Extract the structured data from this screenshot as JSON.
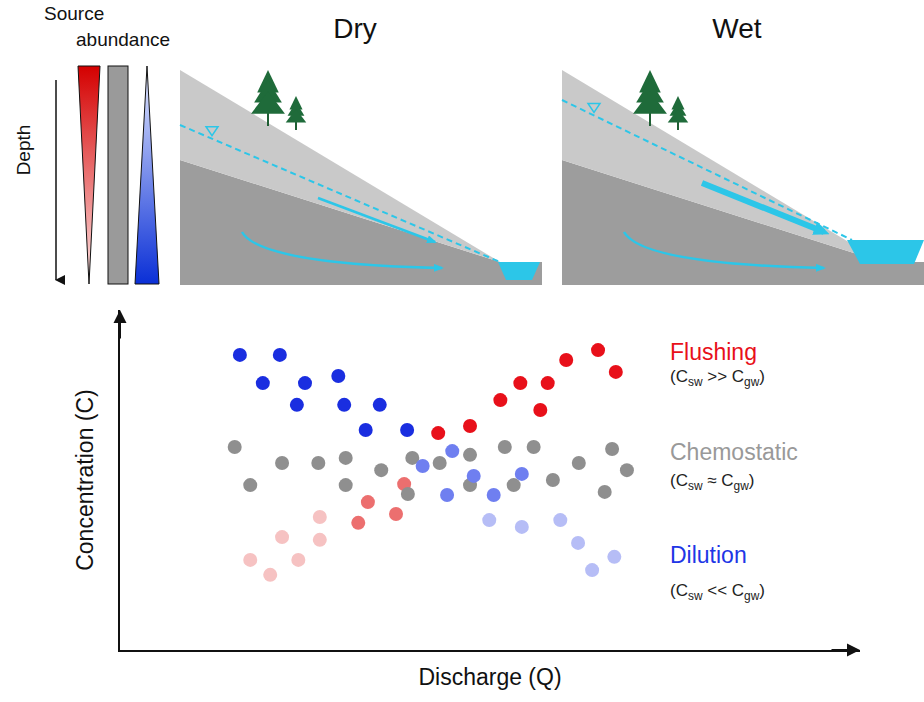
{
  "diagram": {
    "source_abundance": {
      "label": "Source abundance",
      "depth_label": "Depth"
    },
    "panels": [
      {
        "title": "Dry"
      },
      {
        "title": "Wet"
      }
    ]
  },
  "chart_data": {
    "type": "scatter",
    "x_label": "Discharge (Q)",
    "y_label": "Concentration (C)",
    "xlim": [
      0,
      100
    ],
    "ylim": [
      0,
      100
    ],
    "xticks": [],
    "yticks": [],
    "tick_labels": false,
    "grid": false,
    "series": [
      {
        "name": "Flushing",
        "color": "#e8101a",
        "marker": "circle",
        "condition": [
          "(C",
          "sw",
          " >> C",
          "gw",
          ")"
        ],
        "x": [
          17.6,
          20.3,
          24.1,
          21.9,
          27.0,
          27.0,
          32.2,
          33.5,
          37.3,
          38.4,
          43.0,
          47.3,
          51.4,
          54.1,
          56.8,
          57.8,
          60.3,
          64.6,
          67.0
        ],
        "values": [
          26.5,
          22.1,
          26.5,
          33.2,
          39.1,
          32.4,
          37.4,
          43.5,
          40.0,
          48.8,
          63.8,
          65.9,
          73.5,
          78.5,
          70.6,
          78.5,
          85.3,
          88.2,
          81.8
        ],
        "colors": [
          "#f6c2c2",
          "#f6c2c2",
          "#f6c2c2",
          "#f6c2c2",
          "#f6c2c2",
          "#f6c2c2",
          "#ec6f6f",
          "#ec6f6f",
          "#ec6f6f",
          "#ec6f6f",
          "#e8101a",
          "#e8101a",
          "#e8101a",
          "#e8101a",
          "#e8101a",
          "#e8101a",
          "#e8101a",
          "#e8101a",
          "#e8101a"
        ]
      },
      {
        "name": "Chemostatic",
        "color": "#999999",
        "marker": "circle",
        "condition": [
          "(C",
          "sw",
          " ≈ C",
          "gw",
          ")"
        ],
        "x": [
          15.5,
          17.6,
          21.9,
          26.8,
          30.5,
          30.5,
          35.3,
          39.5,
          38.9,
          43.2,
          47.3,
          47.3,
          52.0,
          55.9,
          53.2,
          58.5,
          62.0,
          65.5,
          66.5,
          68.5
        ],
        "values": [
          59.7,
          48.5,
          55.0,
          55.0,
          56.5,
          48.5,
          52.9,
          56.5,
          45.9,
          55.0,
          57.4,
          48.5,
          59.7,
          59.7,
          48.5,
          50.0,
          55.0,
          46.5,
          59.1,
          52.9
        ],
        "colors": [
          "#8f8f8f",
          "#8f8f8f",
          "#8f8f8f",
          "#8f8f8f",
          "#8f8f8f",
          "#8f8f8f",
          "#8f8f8f",
          "#8f8f8f",
          "#8f8f8f",
          "#8f8f8f",
          "#8f8f8f",
          "#8f8f8f",
          "#8f8f8f",
          "#8f8f8f",
          "#8f8f8f",
          "#8f8f8f",
          "#8f8f8f",
          "#8f8f8f",
          "#8f8f8f",
          "#8f8f8f"
        ]
      },
      {
        "name": "Dilution",
        "color": "#2036e6",
        "marker": "circle",
        "condition": [
          "(C",
          "sw",
          " << C",
          "gw",
          ")"
        ],
        "x": [
          16.2,
          21.6,
          19.3,
          25.0,
          23.9,
          29.5,
          30.3,
          35.1,
          33.2,
          38.8,
          40.9,
          44.9,
          44.2,
          47.8,
          50.5,
          54.3,
          49.9,
          54.3,
          59.5,
          61.9,
          63.8,
          66.8
        ],
        "values": [
          86.8,
          86.8,
          78.5,
          78.5,
          72.1,
          80.6,
          72.1,
          72.1,
          64.7,
          64.7,
          54.1,
          58.5,
          45.6,
          51.2,
          45.6,
          51.8,
          38.2,
          36.2,
          38.2,
          31.5,
          23.5,
          27.4
        ],
        "colors": [
          "#1a2ee0",
          "#1a2ee0",
          "#1a2ee0",
          "#1a2ee0",
          "#1a2ee0",
          "#1a2ee0",
          "#1a2ee0",
          "#1a2ee0",
          "#1a2ee0",
          "#1a2ee0",
          "#6f7ff0",
          "#6f7ff0",
          "#6f7ff0",
          "#6f7ff0",
          "#6f7ff0",
          "#6f7ff0",
          "#b6bdf6",
          "#b6bdf6",
          "#b6bdf6",
          "#b6bdf6",
          "#b6bdf6",
          "#b6bdf6"
        ]
      }
    ]
  }
}
